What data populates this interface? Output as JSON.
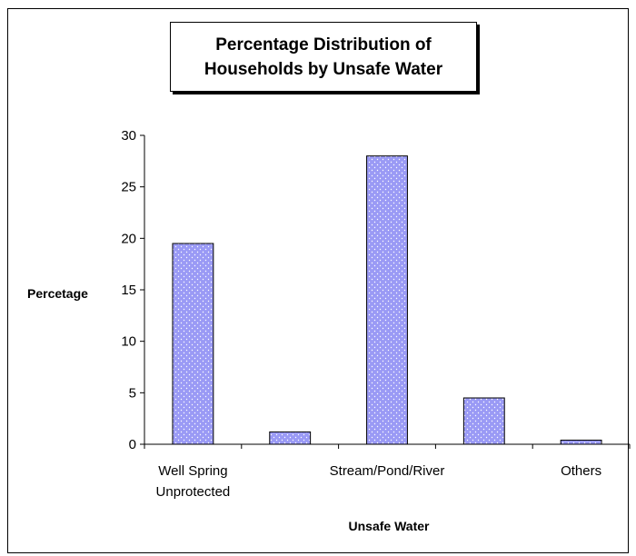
{
  "chart_data": {
    "type": "bar",
    "title_lines": [
      "Percentage Distribution of",
      "Households by Unsafe Water"
    ],
    "xlabel": "Unsafe Water",
    "ylabel": "Percetage",
    "categories": [
      {
        "label_lines": [
          "Well Spring",
          "Unprotected"
        ],
        "show_label": true
      },
      {
        "label_lines": [],
        "show_label": false
      },
      {
        "label_lines": [
          "Stream/Pond/River"
        ],
        "show_label": true
      },
      {
        "label_lines": [],
        "show_label": false
      },
      {
        "label_lines": [
          "Others"
        ],
        "show_label": true
      }
    ],
    "values": [
      19.5,
      1.2,
      28,
      4.5,
      0.4
    ],
    "ylim": [
      0,
      30
    ],
    "yticks": [
      0,
      5,
      10,
      15,
      20,
      25,
      30
    ],
    "bar_color": "#9a9af5",
    "dot_color": "#ffffff",
    "grid": false,
    "legend": "none"
  }
}
